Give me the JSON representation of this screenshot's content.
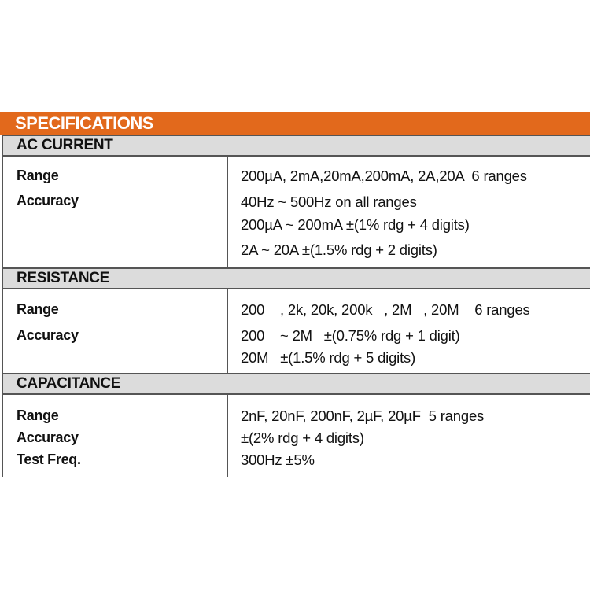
{
  "title": "SPECIFICATIONS",
  "colors": {
    "header_bar": "#e2691c",
    "section_bar": "#dcdcdc"
  },
  "sections": [
    {
      "name": "AC CURRENT",
      "rows": [
        {
          "label": "Range",
          "values": [
            "200µA, 2mA,20mA,200mA, 2A,20A  6 ranges"
          ]
        },
        {
          "label": "Accuracy",
          "values": [
            "40Hz ~ 500Hz on all ranges",
            "200µA ~ 200mA ±(1% rdg + 4 digits)",
            "2A ~ 20A ±(1.5% rdg + 2 digits)"
          ]
        }
      ]
    },
    {
      "name": "RESISTANCE",
      "rows": [
        {
          "label": "Range",
          "values": [
            "200    , 2k, 20k, 200k   , 2M   , 20M    6 ranges"
          ]
        },
        {
          "label": "Accuracy",
          "values": [
            "200    ~ 2M   ±(0.75% rdg + 1 digit)",
            "20M   ±(1.5% rdg + 5 digits)"
          ]
        }
      ]
    },
    {
      "name": "CAPACITANCE",
      "rows": [
        {
          "label": "Range",
          "values": [
            "2nF, 20nF, 200nF, 2µF, 20µF  5 ranges"
          ]
        },
        {
          "label": "Accuracy",
          "values": [
            "±(2% rdg + 4 digits)"
          ]
        },
        {
          "label": "Test Freq.",
          "values": [
            "300Hz ±5%"
          ]
        }
      ]
    }
  ]
}
